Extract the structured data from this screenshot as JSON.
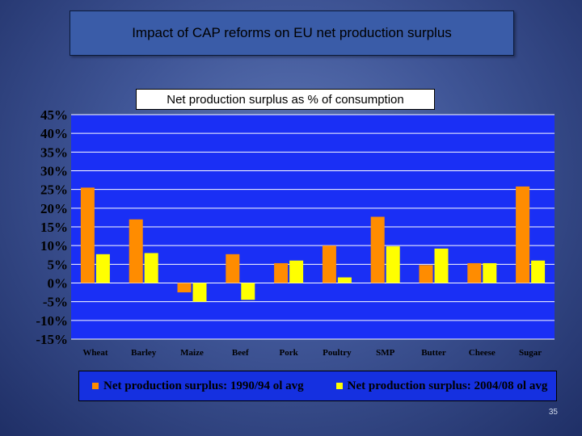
{
  "title": "Impact of CAP reforms on EU net production surplus",
  "page_number": "35",
  "colors": {
    "plot_bg": "#1a2ff5",
    "series1": "#ff8c00",
    "series2": "#ffff00",
    "gridline": "#ffffff"
  },
  "chart_data": {
    "type": "bar",
    "title": "Net production surplus as % of consumption",
    "xlabel": "",
    "ylabel": "",
    "ylim": [
      -0.15,
      0.45
    ],
    "y_ticks": [
      "45%",
      "40%",
      "35%",
      "30%",
      "25%",
      "20%",
      "15%",
      "10%",
      "5%",
      "0%",
      "-5%",
      "-10%",
      "-15%"
    ],
    "categories": [
      "Wheat",
      "Barley",
      "Maize",
      "Beef",
      "Pork",
      "Poultry",
      "SMP",
      "Butter",
      "Cheese",
      "Sugar"
    ],
    "series": [
      {
        "name": "Net production surplus: 1990/94 ol avg",
        "values": [
          0.255,
          0.17,
          -0.025,
          0.077,
          0.053,
          0.1,
          0.177,
          0.048,
          0.053,
          0.258
        ]
      },
      {
        "name": "Net production surplus: 2004/08 ol avg",
        "values": [
          0.077,
          0.08,
          -0.05,
          -0.045,
          0.06,
          0.015,
          0.098,
          0.092,
          0.053,
          0.06
        ]
      }
    ],
    "grid": true,
    "legend_position": "bottom"
  }
}
